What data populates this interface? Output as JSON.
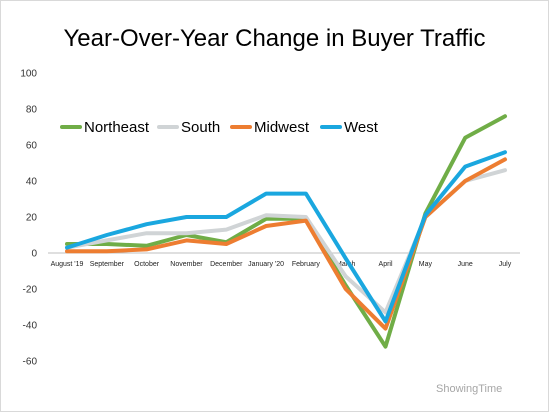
{
  "title": "Year-Over-Year Change in Buyer Traffic",
  "source": "ShowingTime",
  "chart_data": {
    "type": "line",
    "title": "Year-Over-Year Change in Buyer Traffic",
    "xlabel": "",
    "ylabel": "",
    "ylim": [
      -60,
      100
    ],
    "yticks": [
      100,
      80,
      60,
      40,
      20,
      0,
      -20,
      -40,
      -60
    ],
    "grid": false,
    "legend_position": "top-left",
    "categories": [
      "August '19",
      "September",
      "October",
      "November",
      "December",
      "January '20",
      "February",
      "March",
      "April",
      "May",
      "June",
      "July"
    ],
    "series": [
      {
        "name": "Northeast",
        "color": "#70ad47",
        "values": [
          5,
          5,
          4,
          10,
          6,
          19,
          19,
          -18,
          -52,
          22,
          64,
          76
        ]
      },
      {
        "name": "South",
        "color": "#d0d4d6",
        "values": [
          3,
          7,
          11,
          11,
          13,
          21,
          20,
          -13,
          -33,
          20,
          40,
          46
        ]
      },
      {
        "name": "Midwest",
        "color": "#ed7d31",
        "values": [
          1,
          1,
          2,
          7,
          5,
          15,
          18,
          -20,
          -42,
          20,
          40,
          52
        ]
      },
      {
        "name": "West",
        "color": "#1aa7df",
        "values": [
          3,
          10,
          16,
          20,
          20,
          33,
          33,
          -3,
          -38,
          21,
          48,
          56
        ]
      }
    ]
  }
}
